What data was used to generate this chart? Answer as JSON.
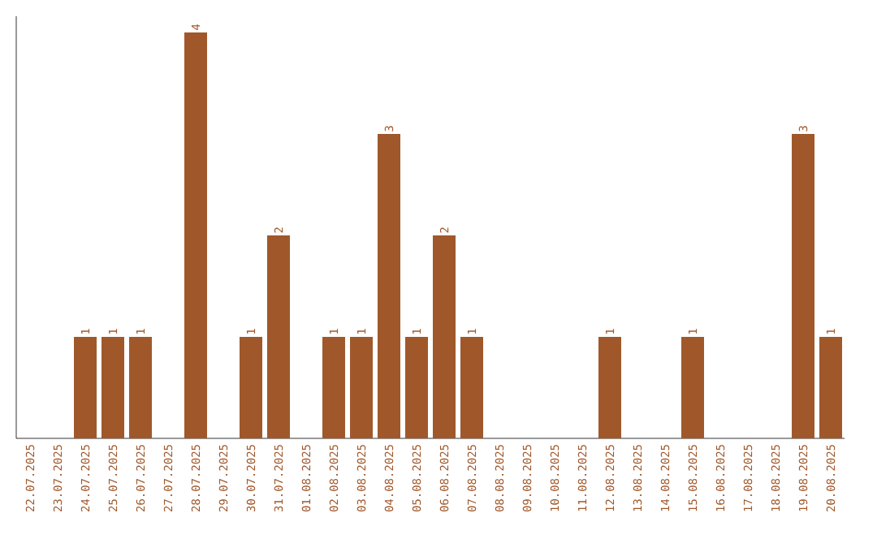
{
  "chart_data": {
    "type": "bar",
    "categories": [
      "22.07.2025",
      "23.07.2025",
      "24.07.2025",
      "25.07.2025",
      "26.07.2025",
      "27.07.2025",
      "28.07.2025",
      "29.07.2025",
      "30.07.2025",
      "31.07.2025",
      "01.08.2025",
      "02.08.2025",
      "03.08.2025",
      "04.08.2025",
      "05.08.2025",
      "06.08.2025",
      "07.08.2025",
      "08.08.2025",
      "09.08.2025",
      "10.08.2025",
      "11.08.2025",
      "12.08.2025",
      "13.08.2025",
      "14.08.2025",
      "15.08.2025",
      "16.08.2025",
      "17.08.2025",
      "18.08.2025",
      "19.08.2025",
      "20.08.2025"
    ],
    "values": [
      0,
      0,
      1,
      1,
      1,
      0,
      4,
      0,
      1,
      2,
      0,
      1,
      1,
      3,
      1,
      2,
      1,
      0,
      0,
      0,
      0,
      1,
      0,
      0,
      1,
      0,
      0,
      0,
      3,
      1
    ],
    "value_labels": [
      null,
      null,
      "1",
      "1",
      "1",
      null,
      "4",
      null,
      "1",
      "2",
      null,
      "1",
      "1",
      "3",
      "1",
      "2",
      "1",
      null,
      null,
      null,
      null,
      "1",
      null,
      null,
      "1",
      null,
      null,
      null,
      "3",
      "1"
    ],
    "color": "#a0582b",
    "tick_labels": "x"
  }
}
